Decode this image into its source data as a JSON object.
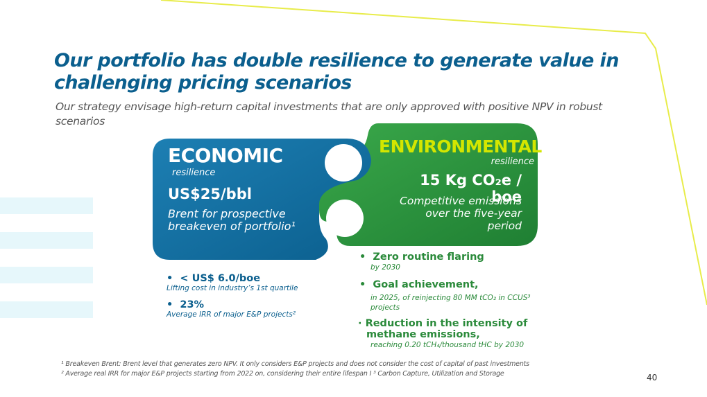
{
  "title": "Our portfolio has double resilience to generate value in challenging pricing scenarios",
  "subtitle": "Our strategy envisage high-return capital investments that are only approved with positive NPV in robust scenarios",
  "colors": {
    "economic": "#0b5f8e",
    "environmental": "#2a8a3a",
    "env_title": "#d4e600",
    "accent_line": "#e8ec4a"
  },
  "economic": {
    "title": "ECONOMIC",
    "subtitle": "resilience",
    "value": "US$25/bbl",
    "description": "Brent for prospective breakeven of portfolio¹",
    "kpis": [
      {
        "value": "< US$ 6.0/boe",
        "note": "Lifting cost in industry’s 1st quartile"
      },
      {
        "value": "23%",
        "note": "Average IRR of major E&P projects²"
      }
    ]
  },
  "environmental": {
    "title": "ENVIRONMENTAL",
    "subtitle": "resilience",
    "value": "15 Kg CO₂e / boe",
    "description": "Competitive emissions over the five-year period",
    "goals": [
      {
        "head": "Zero routine flaring",
        "note": "by 2030"
      },
      {
        "head": "Goal achievement,",
        "note": "in 2025, of reinjecting 80 MM tCO₂ in CCUS³ projects"
      },
      {
        "head": "Reduction in the intensity of methane emissions,",
        "note": "reaching 0.20 tCH₄/thousand tHC by 2030"
      }
    ]
  },
  "footnotes": [
    "¹ Breakeven Brent: Brent level that generates zero NPV. It only considers E&P projects and does not consider the cost of capital of past investments",
    "² Average real IRR for major E&P projects starting from 2022 on, considering  their entire lifespan I ³ Carbon Capture, Utilization and Storage"
  ],
  "page_number": "40"
}
